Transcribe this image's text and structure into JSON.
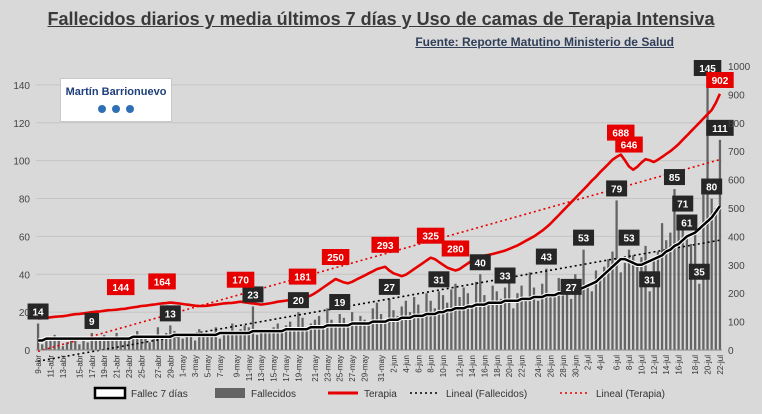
{
  "chart_data": {
    "type": "bar+line",
    "title": "Fallecidos diarios y media últimos 7 días y Uso de camas de Terapia Intensiva",
    "subtitle": "Fuente: Reporte Matutino Ministerio de Salud",
    "watermark": "Martín Barrionuevo",
    "ylim_left": [
      0,
      150
    ],
    "yticks_left": [
      0,
      20,
      40,
      60,
      80,
      100,
      120,
      140
    ],
    "ylim_right": [
      0,
      1000
    ],
    "yticks_right": [
      0,
      100,
      200,
      300,
      400,
      500,
      600,
      700,
      800,
      900,
      1000
    ],
    "xtick_labels": [
      "9-abr",
      "11-abr",
      "13-abr",
      "15-abr",
      "17-abr",
      "19-abr",
      "21-abr",
      "23-abr",
      "25-abr",
      "27-abr",
      "29-abr",
      "1-may",
      "3-may",
      "5-may",
      "7-may",
      "9-may",
      "11-may",
      "13-may",
      "15-may",
      "17-may",
      "19-may",
      "21-may",
      "23-may",
      "25-may",
      "27-may",
      "29-may",
      "31-may",
      "2-jun",
      "4-jun",
      "6-jun",
      "8-jun",
      "10-jun",
      "12-jun",
      "14-jun",
      "16-jun",
      "18-jun",
      "20-jun",
      "22-jun",
      "24-jun",
      "26-jun",
      "28-jun",
      "30-jun",
      "2-jul",
      "4-jul",
      "6-jul",
      "8-jul",
      "10-jul",
      "12-jul",
      "14-jul",
      "16-jul",
      "18-jul",
      "20-jul",
      "22-jul"
    ],
    "fallecidos": [
      14,
      3,
      5,
      6,
      8,
      5,
      2,
      4,
      6,
      7,
      3,
      5,
      4,
      9,
      6,
      7,
      8,
      5,
      6,
      9,
      5,
      7,
      6,
      8,
      10,
      7,
      6,
      4,
      8,
      12,
      6,
      9,
      13,
      10,
      7,
      6,
      8,
      9,
      5,
      11,
      7,
      9,
      8,
      12,
      6,
      10,
      9,
      14,
      8,
      11,
      13,
      12,
      23,
      8,
      10,
      11,
      9,
      12,
      14,
      10,
      13,
      15,
      11,
      20,
      17,
      12,
      14,
      16,
      18,
      13,
      22,
      16,
      14,
      19,
      17,
      12,
      20,
      15,
      18,
      16,
      13,
      22,
      25,
      19,
      15,
      27,
      21,
      18,
      23,
      26,
      20,
      28,
      24,
      19,
      30,
      26,
      22,
      31,
      29,
      25,
      32,
      35,
      28,
      33,
      30,
      24,
      36,
      40,
      29,
      26,
      34,
      31,
      27,
      33,
      37,
      22,
      30,
      34,
      28,
      41,
      33,
      26,
      35,
      43,
      30,
      28,
      38,
      34,
      31,
      27,
      40,
      36,
      53,
      35,
      31,
      42,
      38,
      44,
      48,
      52,
      79,
      41,
      46,
      53,
      50,
      45,
      49,
      55,
      31,
      48,
      52,
      67,
      58,
      62,
      85,
      66,
      71,
      61,
      56,
      70,
      35,
      82,
      145,
      80,
      75,
      111
    ],
    "fallec_7dias": [
      5,
      5,
      6,
      6,
      6,
      6,
      6,
      6,
      6,
      6,
      6,
      6,
      6,
      6,
      6,
      6,
      6,
      6,
      6,
      6,
      6,
      6,
      6,
      7,
      7,
      7,
      7,
      7,
      7,
      7,
      7,
      7,
      7,
      8,
      8,
      8,
      8,
      8,
      8,
      8,
      8,
      8,
      8,
      8,
      9,
      9,
      9,
      9,
      9,
      9,
      9,
      9,
      10,
      10,
      10,
      10,
      10,
      10,
      10,
      10,
      11,
      11,
      11,
      11,
      11,
      11,
      12,
      12,
      12,
      12,
      13,
      13,
      13,
      13,
      13,
      13,
      14,
      14,
      14,
      14,
      14,
      15,
      15,
      15,
      15,
      16,
      16,
      16,
      17,
      17,
      17,
      18,
      18,
      18,
      19,
      19,
      19,
      20,
      20,
      21,
      21,
      22,
      22,
      22,
      23,
      23,
      24,
      24,
      24,
      25,
      25,
      25,
      25,
      26,
      26,
      26,
      26,
      27,
      27,
      27,
      28,
      28,
      28,
      29,
      29,
      29,
      30,
      30,
      31,
      31,
      31,
      32,
      33,
      34,
      35,
      36,
      38,
      40,
      42,
      44,
      46,
      48,
      48,
      47,
      46,
      45,
      45,
      46,
      47,
      48,
      49,
      50,
      52,
      53,
      55,
      56,
      58,
      60,
      61,
      62,
      64,
      66,
      68,
      70,
      73,
      76
    ],
    "terapia": [
      111,
      112,
      114,
      115,
      117,
      118,
      119,
      121,
      124,
      126,
      127,
      129,
      131,
      133,
      135,
      136,
      138,
      140,
      141,
      142,
      144,
      145,
      148,
      150,
      152,
      155,
      156,
      158,
      160,
      162,
      164,
      165,
      167,
      166,
      164,
      162,
      160,
      158,
      156,
      155,
      155,
      156,
      158,
      160,
      162,
      164,
      165,
      166,
      168,
      170,
      168,
      166,
      164,
      162,
      160,
      162,
      164,
      167,
      170,
      172,
      174,
      176,
      178,
      180,
      181,
      186,
      192,
      200,
      210,
      220,
      230,
      240,
      250,
      244,
      238,
      235,
      240,
      248,
      255,
      262,
      270,
      277,
      285,
      289,
      293,
      280,
      270,
      265,
      260,
      265,
      275,
      285,
      295,
      305,
      315,
      325,
      320,
      310,
      300,
      290,
      285,
      280,
      285,
      295,
      305,
      315,
      322,
      328,
      332,
      335,
      338,
      342,
      346,
      350,
      356,
      362,
      368,
      376,
      384,
      392,
      400,
      410,
      420,
      432,
      445,
      460,
      475,
      490,
      505,
      520,
      535,
      550,
      565,
      580,
      596,
      610,
      626,
      640,
      655,
      670,
      680,
      688,
      668,
      646,
      635,
      645,
      660,
      672,
      668,
      662,
      670,
      680,
      690,
      700,
      712,
      725,
      740,
      755,
      770,
      785,
      800,
      815,
      830,
      845,
      870,
      902
    ]
  },
  "labels": {
    "fallecidos": [
      "14",
      "9",
      "13",
      "23",
      "20",
      "19",
      "27",
      "31",
      "40",
      "33",
      "43",
      "27",
      "53",
      "79",
      "53",
      "31",
      "85",
      "71",
      "61",
      "35",
      "145",
      "80",
      "111"
    ],
    "terapia": [
      "144",
      "164",
      "170",
      "181",
      "250",
      "293",
      "325",
      "280",
      "688",
      "646",
      "902"
    ]
  },
  "legend": {
    "fallec7": "Fallec 7 días",
    "fallecidos": "Fallecidos",
    "terapia": "Terapia",
    "lineal_fallecidos": "Lineal (Fallecidos)",
    "lineal_terapia": "Lineal (Terapia)"
  },
  "colors": {
    "bar": "#646464",
    "avg": "#000000",
    "terapia": "#e60000",
    "label_dark": "#262626",
    "label_red": "#e60000",
    "background": "#d9d9d9"
  }
}
